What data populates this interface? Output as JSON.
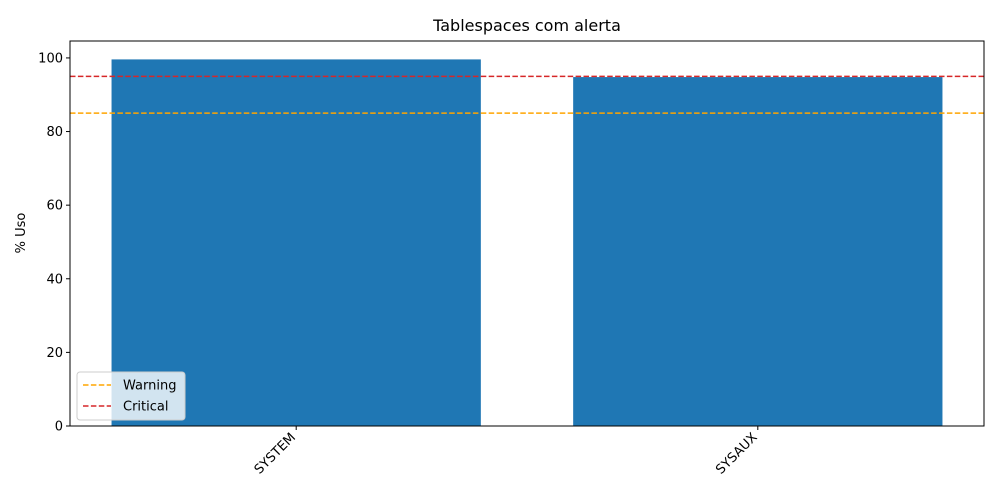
{
  "chart_data": {
    "type": "bar",
    "title": "Tablespaces com alerta",
    "xlabel": "",
    "ylabel": "% Uso",
    "categories": [
      "SYSTEM",
      "SYSAUX"
    ],
    "values": [
      99.6,
      94.8
    ],
    "ylim": [
      0,
      104.6
    ],
    "yticks": [
      0,
      20,
      40,
      60,
      80,
      100
    ],
    "bar_color": "#1f77b4",
    "grid": false,
    "thresholds": [
      {
        "name": "Warning",
        "value": 85,
        "color": "#ffa500"
      },
      {
        "name": "Critical",
        "value": 95,
        "color": "#d62728"
      }
    ],
    "legend_position": "lower-left"
  }
}
